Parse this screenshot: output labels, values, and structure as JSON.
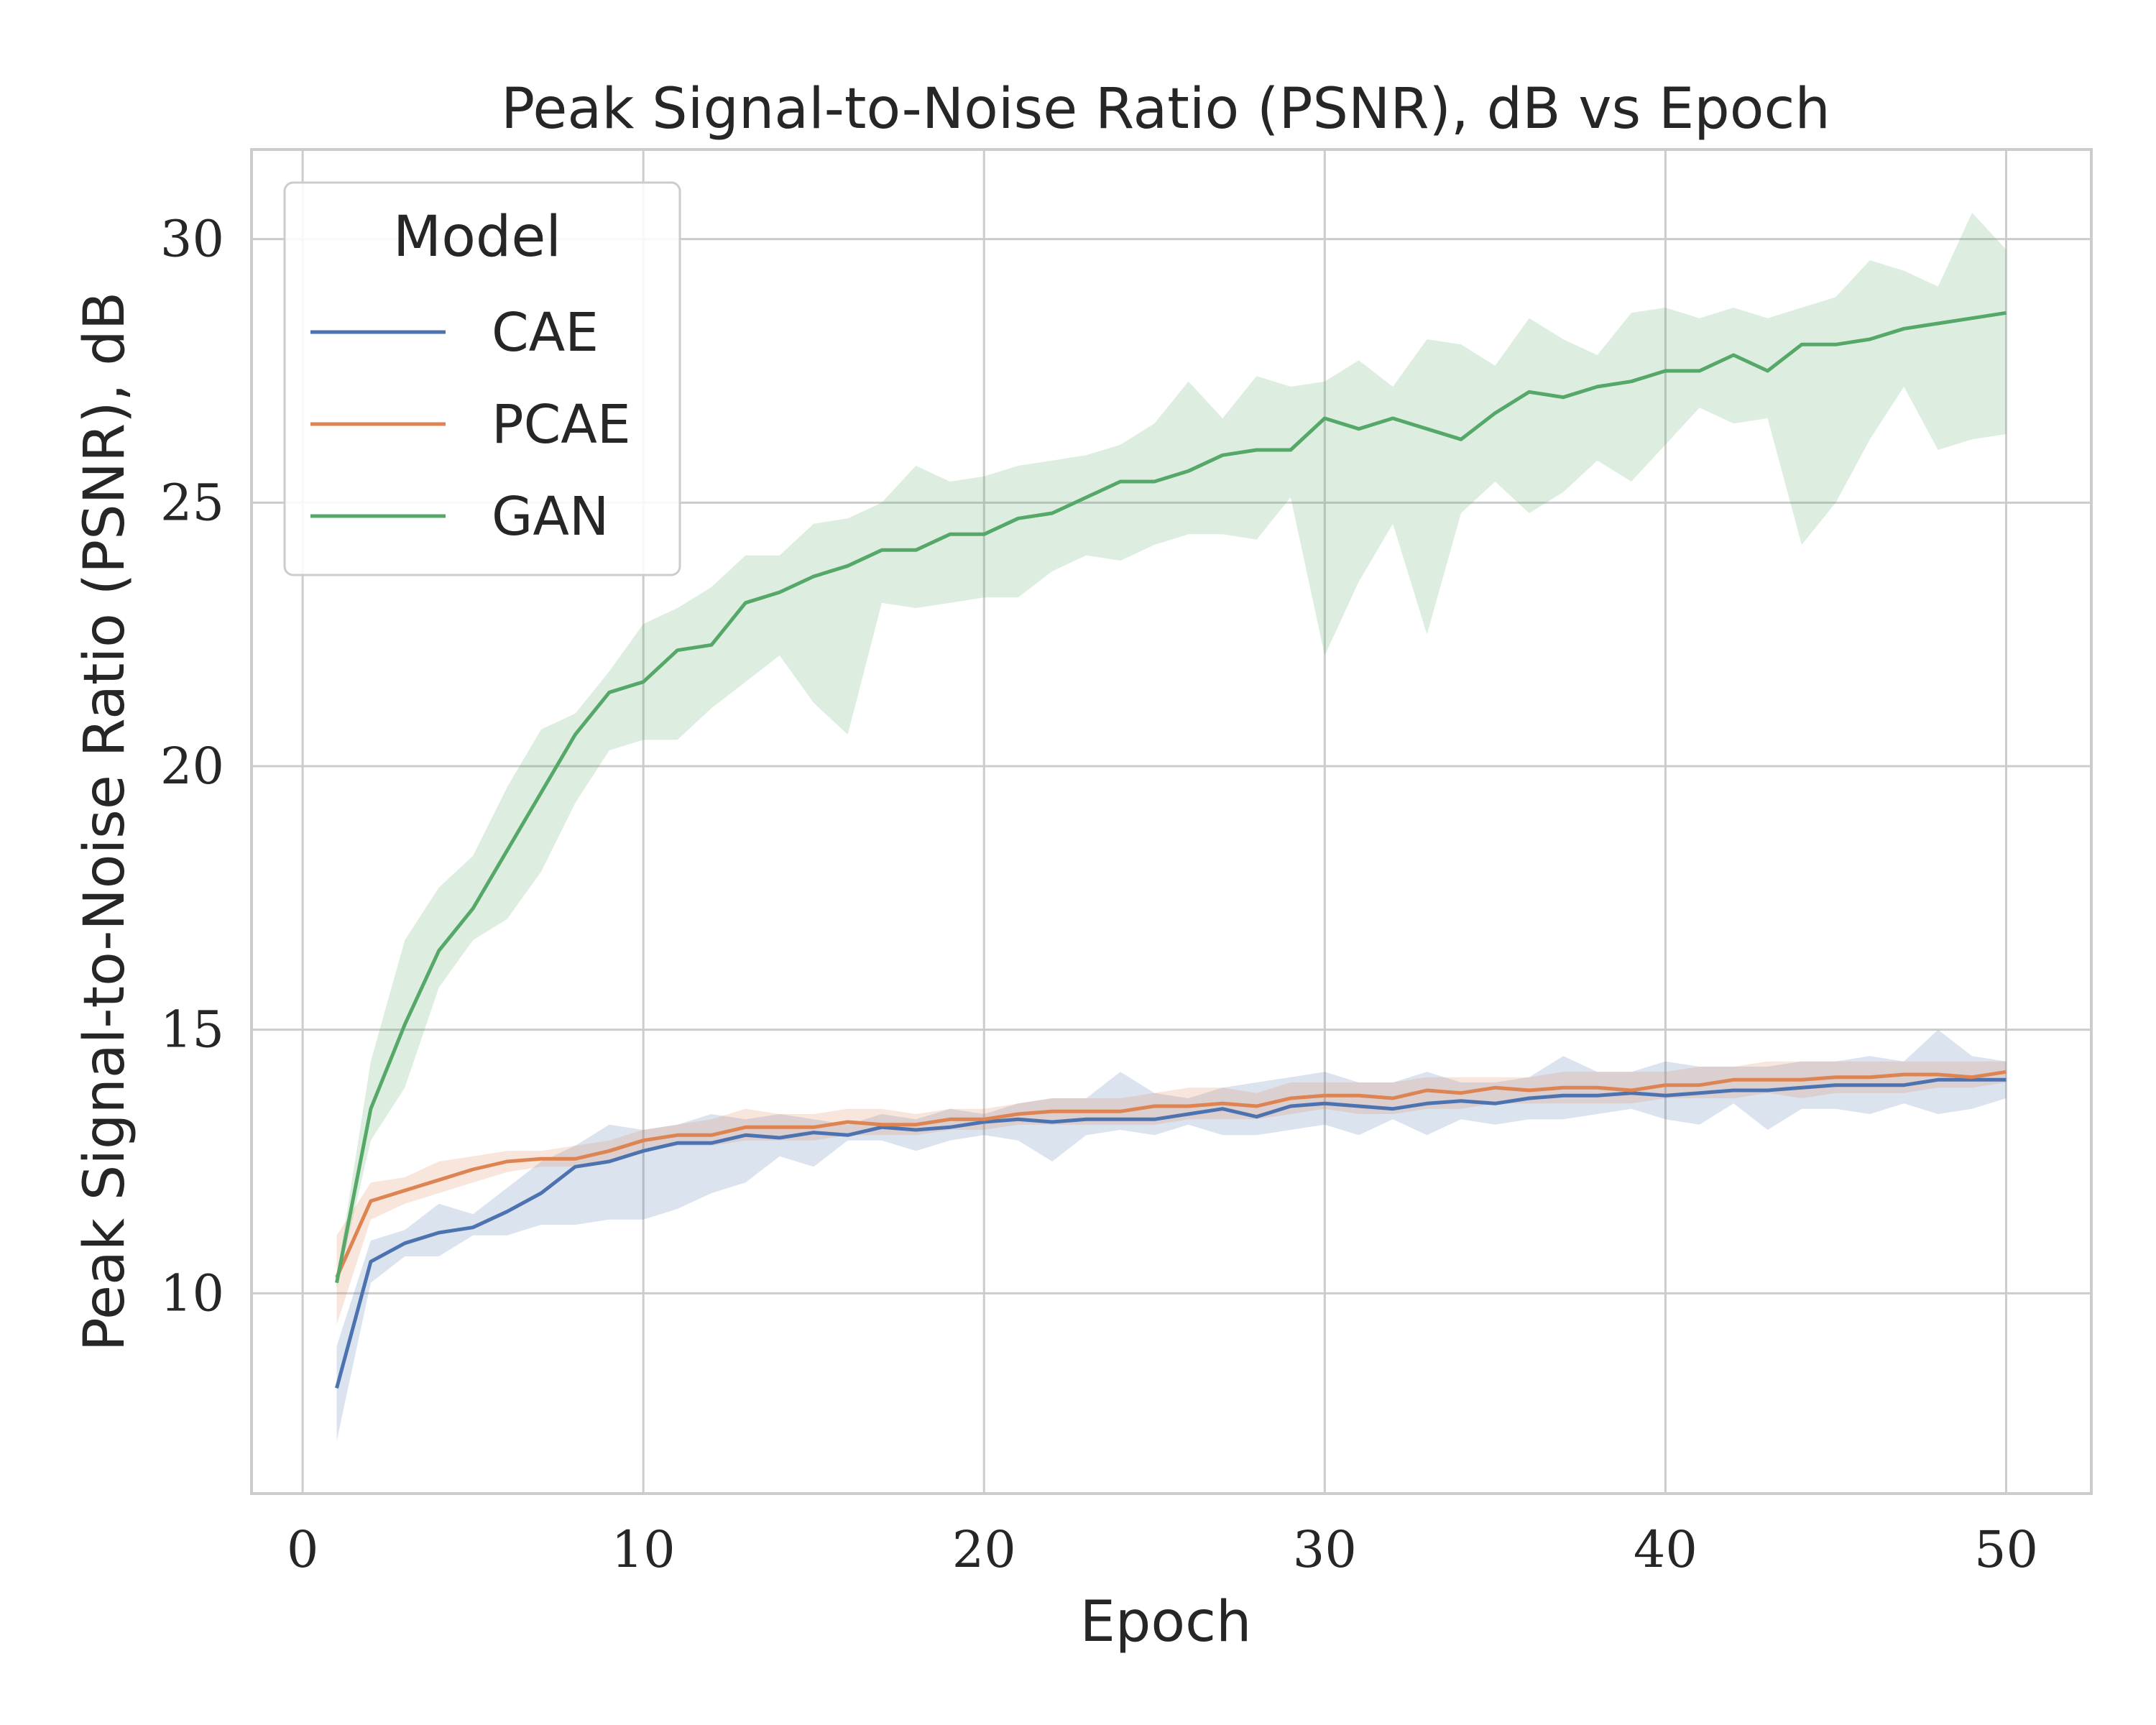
{
  "chart_data": {
    "type": "line",
    "title": "Peak Signal-to-Noise Ratio (PSNR), dB vs Epoch",
    "xlabel": "Epoch",
    "ylabel": "Peak Signal-to-Noise Ratio (PSNR), dB",
    "xlim": [
      -1.5,
      52.5
    ],
    "ylim": [
      6.2,
      31.7
    ],
    "xticks": [
      0,
      10,
      20,
      30,
      40,
      50
    ],
    "yticks": [
      10,
      15,
      20,
      25,
      30
    ],
    "grid": true,
    "legend": {
      "title": "Model",
      "placement": "top-left"
    },
    "x": [
      1,
      2,
      3,
      4,
      5,
      6,
      7,
      8,
      9,
      10,
      11,
      12,
      13,
      14,
      15,
      16,
      17,
      18,
      19,
      20,
      21,
      22,
      23,
      24,
      25,
      26,
      27,
      28,
      29,
      30,
      31,
      32,
      33,
      34,
      35,
      36,
      37,
      38,
      39,
      40,
      41,
      42,
      43,
      44,
      45,
      46,
      47,
      48,
      49,
      50
    ],
    "series": [
      {
        "name": "CAE",
        "color": "#4c72b0",
        "values": [
          8.2,
          10.6,
          10.95,
          11.15,
          11.25,
          11.55,
          11.9,
          12.4,
          12.5,
          12.7,
          12.85,
          12.85,
          13.0,
          12.95,
          13.05,
          13.0,
          13.15,
          13.1,
          13.15,
          13.25,
          13.3,
          13.25,
          13.3,
          13.3,
          13.3,
          13.4,
          13.5,
          13.35,
          13.55,
          13.6,
          13.55,
          13.5,
          13.6,
          13.65,
          13.6,
          13.7,
          13.75,
          13.75,
          13.8,
          13.75,
          13.8,
          13.85,
          13.85,
          13.9,
          13.95,
          13.95,
          13.95,
          14.05,
          14.05,
          14.05
        ],
        "lower": [
          7.2,
          10.2,
          10.7,
          10.7,
          11.1,
          11.1,
          11.3,
          11.3,
          11.4,
          11.4,
          11.6,
          11.9,
          12.1,
          12.6,
          12.4,
          12.9,
          12.9,
          12.7,
          12.9,
          13.0,
          12.9,
          12.5,
          13.0,
          13.1,
          13.0,
          13.2,
          13.0,
          13.0,
          13.1,
          13.2,
          13.0,
          13.3,
          13.0,
          13.3,
          13.2,
          13.3,
          13.3,
          13.4,
          13.5,
          13.3,
          13.2,
          13.6,
          13.1,
          13.5,
          13.5,
          13.4,
          13.6,
          13.4,
          13.5,
          13.7
        ],
        "upper": [
          9.0,
          11.0,
          11.2,
          11.7,
          11.5,
          12.0,
          12.5,
          12.8,
          13.2,
          13.1,
          13.2,
          13.4,
          13.3,
          13.4,
          13.3,
          13.2,
          13.4,
          13.3,
          13.5,
          13.4,
          13.6,
          13.7,
          13.7,
          14.2,
          13.8,
          13.7,
          13.9,
          14.0,
          14.1,
          14.2,
          14.0,
          14.0,
          14.2,
          14.0,
          14.0,
          14.1,
          14.5,
          14.2,
          14.2,
          14.4,
          14.3,
          14.3,
          14.3,
          14.4,
          14.4,
          14.5,
          14.4,
          15.0,
          14.5,
          14.4
        ]
      },
      {
        "name": "PCAE",
        "color": "#dd8452",
        "values": [
          10.3,
          11.75,
          11.95,
          12.15,
          12.35,
          12.5,
          12.55,
          12.55,
          12.7,
          12.9,
          13.0,
          13.0,
          13.15,
          13.15,
          13.15,
          13.25,
          13.2,
          13.2,
          13.3,
          13.3,
          13.4,
          13.45,
          13.45,
          13.45,
          13.55,
          13.55,
          13.6,
          13.55,
          13.7,
          13.75,
          13.75,
          13.7,
          13.85,
          13.8,
          13.9,
          13.85,
          13.9,
          13.9,
          13.85,
          13.95,
          13.95,
          14.05,
          14.05,
          14.05,
          14.1,
          14.1,
          14.15,
          14.15,
          14.1,
          14.2
        ],
        "lower": [
          9.4,
          11.4,
          11.7,
          11.9,
          12.1,
          12.3,
          12.4,
          12.4,
          12.5,
          12.7,
          12.8,
          12.8,
          12.9,
          12.9,
          12.9,
          13.0,
          13.0,
          13.0,
          13.1,
          13.1,
          13.2,
          13.2,
          13.2,
          13.2,
          13.2,
          13.3,
          13.3,
          13.3,
          13.4,
          13.5,
          13.4,
          13.4,
          13.5,
          13.5,
          13.6,
          13.6,
          13.6,
          13.6,
          13.6,
          13.7,
          13.7,
          13.7,
          13.8,
          13.7,
          13.8,
          13.8,
          13.8,
          13.9,
          13.9,
          14.0
        ],
        "upper": [
          11.1,
          12.1,
          12.2,
          12.5,
          12.6,
          12.7,
          12.7,
          12.8,
          12.9,
          13.1,
          13.2,
          13.3,
          13.5,
          13.4,
          13.4,
          13.5,
          13.5,
          13.4,
          13.5,
          13.5,
          13.6,
          13.7,
          13.7,
          13.7,
          13.8,
          13.9,
          13.9,
          13.8,
          14.0,
          14.0,
          14.0,
          14.0,
          14.1,
          14.1,
          14.1,
          14.1,
          14.2,
          14.2,
          14.2,
          14.2,
          14.3,
          14.3,
          14.4,
          14.4,
          14.4,
          14.4,
          14.4,
          14.4,
          14.4,
          14.4
        ]
      },
      {
        "name": "GAN",
        "color": "#55a868",
        "values": [
          10.2,
          13.5,
          15.1,
          16.5,
          17.3,
          18.4,
          19.5,
          20.6,
          21.4,
          21.6,
          22.2,
          22.3,
          23.1,
          23.3,
          23.6,
          23.8,
          24.1,
          24.1,
          24.4,
          24.4,
          24.7,
          24.8,
          25.1,
          25.4,
          25.4,
          25.6,
          25.9,
          26.0,
          26.0,
          26.6,
          26.4,
          26.6,
          26.4,
          26.2,
          26.7,
          27.1,
          27.0,
          27.2,
          27.3,
          27.5,
          27.5,
          27.8,
          27.5,
          28.0,
          28.0,
          28.1,
          28.3,
          28.4,
          28.5,
          28.6
        ],
        "lower": [
          10.1,
          12.9,
          13.9,
          15.8,
          16.7,
          17.1,
          18.0,
          19.3,
          20.3,
          20.5,
          20.5,
          21.1,
          21.6,
          22.1,
          21.2,
          20.6,
          23.1,
          23.0,
          23.1,
          23.2,
          23.2,
          23.7,
          24.0,
          23.9,
          24.2,
          24.4,
          24.4,
          24.3,
          25.1,
          22.1,
          23.5,
          24.6,
          22.5,
          24.8,
          25.4,
          24.8,
          25.2,
          25.8,
          25.4,
          26.1,
          26.8,
          26.5,
          26.6,
          24.2,
          25.0,
          26.2,
          27.2,
          26.0,
          26.2,
          26.3
        ],
        "upper": [
          10.3,
          14.4,
          16.7,
          17.7,
          18.3,
          19.6,
          20.7,
          21.0,
          21.8,
          22.7,
          23.0,
          23.4,
          24.0,
          24.0,
          24.6,
          24.7,
          25.0,
          25.7,
          25.4,
          25.5,
          25.7,
          25.8,
          25.9,
          26.1,
          26.5,
          27.3,
          26.6,
          27.4,
          27.2,
          27.3,
          27.7,
          27.2,
          28.1,
          28.0,
          27.6,
          28.5,
          28.1,
          27.8,
          28.6,
          28.7,
          28.5,
          28.7,
          28.5,
          28.7,
          28.9,
          29.6,
          29.4,
          29.1,
          30.5,
          29.8
        ]
      }
    ]
  }
}
